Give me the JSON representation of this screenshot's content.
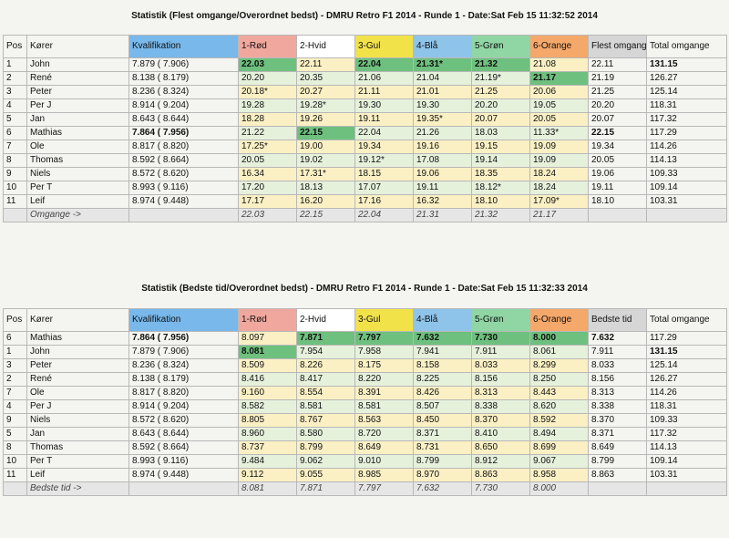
{
  "table1": {
    "title": "Statistik (Flest omgange/Overordnet bedst) - DMRU Retro F1 2014 - Runde 1 - Date:Sat Feb 15 11:32:52 2014",
    "headers": [
      "Pos",
      "Kører",
      "Kvalifikation",
      "1-Rød",
      "2-Hvid",
      "3-Gul",
      "4-Blå",
      "5-Grøn",
      "6-Orange",
      "Flest omgange",
      "Total omgange"
    ],
    "rows": [
      [
        "1",
        "John",
        "7.879 ( 7.906)",
        "22.03",
        "22.11",
        "22.04",
        "21.31*",
        "21.32",
        "21.08",
        "22.11",
        "131.15"
      ],
      [
        "2",
        "René",
        "8.138 ( 8.179)",
        "20.20",
        "20.35",
        "21.06",
        "21.04",
        "21.19*",
        "21.17",
        "21.19",
        "126.27"
      ],
      [
        "3",
        "Peter",
        "8.236 ( 8.324)",
        "20.18*",
        "20.27",
        "21.11",
        "21.01",
        "21.25",
        "20.06",
        "21.25",
        "125.14"
      ],
      [
        "4",
        "Per J",
        "8.914 ( 9.204)",
        "19.28",
        "19.28*",
        "19.30",
        "19.30",
        "20.20",
        "19.05",
        "20.20",
        "118.31"
      ],
      [
        "5",
        "Jan",
        "8.643 ( 8.644)",
        "18.28",
        "19.26",
        "19.11",
        "19.35*",
        "20.07",
        "20.05",
        "20.07",
        "117.32"
      ],
      [
        "6",
        "Mathias",
        "7.864 ( 7.956)",
        "21.22",
        "22.15",
        "22.04",
        "21.26",
        "18.03",
        "11.33*",
        "22.15",
        "117.29"
      ],
      [
        "7",
        "Ole",
        "8.817 ( 8.820)",
        "17.25*",
        "19.00",
        "19.34",
        "19.16",
        "19.15",
        "19.09",
        "19.34",
        "114.26"
      ],
      [
        "8",
        "Thomas",
        "8.592 ( 8.664)",
        "20.05",
        "19.02",
        "19.12*",
        "17.08",
        "19.14",
        "19.09",
        "20.05",
        "114.13"
      ],
      [
        "9",
        "Niels",
        "8.572 ( 8.620)",
        "16.34",
        "17.31*",
        "18.15",
        "19.06",
        "18.35",
        "18.24",
        "19.06",
        "109.33"
      ],
      [
        "10",
        "Per T",
        "8.993 ( 9.116)",
        "17.20",
        "18.13",
        "17.07",
        "19.11",
        "18.12*",
        "18.24",
        "19.11",
        "109.14"
      ],
      [
        "11",
        "Leif",
        "8.974 ( 9.448)",
        "17.17",
        "16.20",
        "17.16",
        "16.32",
        "18.10",
        "17.09*",
        "18.10",
        "103.31"
      ]
    ],
    "summary_label": "Omgange ->",
    "summary": [
      "22.03",
      "22.15",
      "22.04",
      "21.31",
      "21.32",
      "21.17"
    ]
  },
  "table2": {
    "title": "Statistik (Bedste tid/Overordnet bedst) - DMRU Retro F1 2014 - Runde 1 - Date:Sat Feb 15 11:32:33 2014",
    "headers": [
      "Pos",
      "Kører",
      "Kvalifikation",
      "1-Rød",
      "2-Hvid",
      "3-Gul",
      "4-Blå",
      "5-Grøn",
      "6-Orange",
      "Bedste tid",
      "Total omgange"
    ],
    "rows": [
      [
        "6",
        "Mathias",
        "7.864 ( 7.956)",
        "8.097",
        "7.871",
        "7.797",
        "7.632",
        "7.730",
        "8.000",
        "7.632",
        "117.29"
      ],
      [
        "1",
        "John",
        "7.879 ( 7.906)",
        "8.081",
        "7.954",
        "7.958",
        "7.941",
        "7.911",
        "8.061",
        "7.911",
        "131.15"
      ],
      [
        "3",
        "Peter",
        "8.236 ( 8.324)",
        "8.509",
        "8.226",
        "8.175",
        "8.158",
        "8.033",
        "8.299",
        "8.033",
        "125.14"
      ],
      [
        "2",
        "René",
        "8.138 ( 8.179)",
        "8.416",
        "8.417",
        "8.220",
        "8.225",
        "8.156",
        "8.250",
        "8.156",
        "126.27"
      ],
      [
        "7",
        "Ole",
        "8.817 ( 8.820)",
        "9.160",
        "8.554",
        "8.391",
        "8.426",
        "8.313",
        "8.443",
        "8.313",
        "114.26"
      ],
      [
        "4",
        "Per J",
        "8.914 ( 9.204)",
        "8.582",
        "8.581",
        "8.581",
        "8.507",
        "8.338",
        "8.620",
        "8.338",
        "118.31"
      ],
      [
        "9",
        "Niels",
        "8.572 ( 8.620)",
        "8.805",
        "8.767",
        "8.563",
        "8.450",
        "8.370",
        "8.592",
        "8.370",
        "109.33"
      ],
      [
        "5",
        "Jan",
        "8.643 ( 8.644)",
        "8.960",
        "8.580",
        "8.720",
        "8.371",
        "8.410",
        "8.494",
        "8.371",
        "117.32"
      ],
      [
        "8",
        "Thomas",
        "8.592 ( 8.664)",
        "8.737",
        "8.799",
        "8.649",
        "8.731",
        "8.650",
        "8.699",
        "8.649",
        "114.13"
      ],
      [
        "10",
        "Per T",
        "8.993 ( 9.116)",
        "9.484",
        "9.062",
        "9.010",
        "8.799",
        "8.912",
        "9.067",
        "8.799",
        "109.14"
      ],
      [
        "11",
        "Leif",
        "8.974 ( 9.448)",
        "9.112",
        "9.055",
        "8.985",
        "8.970",
        "8.863",
        "8.958",
        "8.863",
        "103.31"
      ]
    ],
    "summary_label": "Bedste tid ->",
    "summary": [
      "8.081",
      "7.871",
      "7.797",
      "7.632",
      "7.730",
      "8.000"
    ]
  },
  "colors": {
    "red": "#f0a89e",
    "white": "#ffffff",
    "yellow": "#f2e24a",
    "blue": "#8fc4ea",
    "green": "#8fd6a4",
    "orange": "#f4a86a"
  }
}
